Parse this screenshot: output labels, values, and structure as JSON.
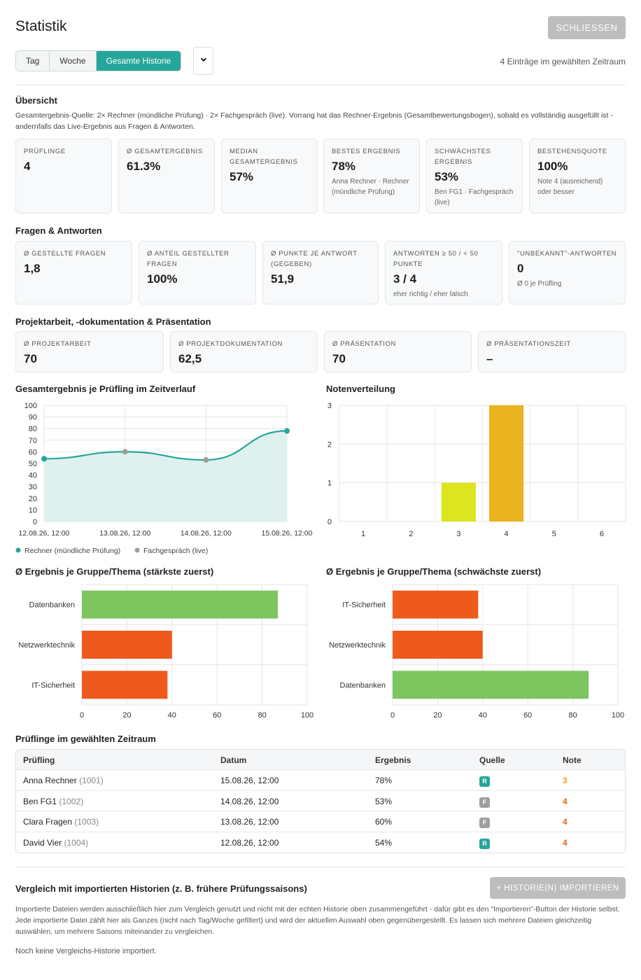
{
  "header": {
    "title": "Statistik",
    "close_label": "SCHLIESSEN"
  },
  "filter": {
    "tabs": [
      "Tag",
      "Woche",
      "Gesamte Historie"
    ],
    "active_tab": "Gesamte Historie",
    "select_icon": "chevron-down-icon",
    "count_text": "4 Einträge im gewählten Zeitraum"
  },
  "overview": {
    "title": "Übersicht",
    "description": "Gesamtergebnis-Quelle: 2× Rechner (mündliche Prüfung) · 2× Fachgespräch (live). Vorrang hat das Rechner-Ergebnis (Gesamtbewertungsbogen), sobald es vollständig ausgefüllt ist - andernfalls das Live-Ergebnis aus Fragen & Antworten.",
    "cards": [
      {
        "label": "Prüflinge",
        "value": "4",
        "sub": ""
      },
      {
        "label": "Ø Gesamtergebnis",
        "value": "61.3%",
        "sub": ""
      },
      {
        "label": "Median Gesamtergebnis",
        "value": "57%",
        "sub": ""
      },
      {
        "label": "Bestes Ergebnis",
        "value": "78%",
        "sub": "Anna Rechner · Rechner (mündliche Prüfung)"
      },
      {
        "label": "Schwächstes Ergebnis",
        "value": "53%",
        "sub": "Ben FG1 · Fachgespräch (live)"
      },
      {
        "label": "Bestehensquote",
        "value": "100%",
        "sub": "Note 4 (ausreichend) oder besser"
      }
    ]
  },
  "qa": {
    "title": "Fragen & Antworten",
    "cards": [
      {
        "label": "Ø Gestellte Fragen",
        "value": "1,8",
        "sub": ""
      },
      {
        "label": "Ø Anteil gestellter Fragen",
        "value": "100%",
        "sub": ""
      },
      {
        "label": "Ø Punkte je Antwort (gegeben)",
        "value": "51,9",
        "sub": ""
      },
      {
        "label": "Antworten ≥ 50 / < 50 Punkte",
        "value": "3 / 4",
        "sub": "eher richtig / eher falsch"
      },
      {
        "label": "\"Unbekannt\"-Antworten",
        "value": "0",
        "sub": "Ø 0 je Prüfling"
      }
    ]
  },
  "project": {
    "title": "Projektarbeit, -dokumentation & Präsentation",
    "cards": [
      {
        "label": "Ø Projektarbeit",
        "value": "70"
      },
      {
        "label": "Ø Projektdokumentation",
        "value": "62,5"
      },
      {
        "label": "Ø Präsentation",
        "value": "70"
      },
      {
        "label": "Ø Präsentationszeit",
        "value": "–"
      }
    ]
  },
  "chart_data": [
    {
      "type": "line",
      "title": "Gesamtergebnis je Prüfling im Zeitverlauf",
      "x": [
        "12.08.26, 12:00",
        "13.08.26, 12:00",
        "14.08.26, 12:00",
        "15.08.26, 12:00"
      ],
      "values": [
        54,
        60,
        53,
        78
      ],
      "point_sources": [
        "Rechner (mündliche Prüfung)",
        "Fachgespräch (live)",
        "Fachgespräch (live)",
        "Rechner (mündliche Prüfung)"
      ],
      "ylim": [
        0,
        100
      ],
      "yticks": [
        0,
        10,
        20,
        30,
        40,
        50,
        60,
        70,
        80,
        90,
        100
      ],
      "legend": [
        {
          "name": "Rechner (mündliche Prüfung)",
          "color": "#26a69a"
        },
        {
          "name": "Fachgespräch (live)",
          "color": "#9e9e9e"
        }
      ],
      "legend_position": "bottom-left",
      "line_color": "#26a69a",
      "fill_color": "#dff1ee",
      "grid": true
    },
    {
      "type": "bar",
      "title": "Notenverteilung",
      "categories": [
        "1",
        "2",
        "3",
        "4",
        "5",
        "6"
      ],
      "values": [
        0,
        0,
        1,
        3,
        0,
        0
      ],
      "colors": [
        "#26a69a",
        "#8bc34a",
        "#dce51f",
        "#eab21e",
        "#f57c00",
        "#e53935"
      ],
      "ylim": [
        0,
        3
      ],
      "yticks": [
        0,
        1,
        2,
        3
      ],
      "grid": true
    },
    {
      "type": "bar",
      "orientation": "horizontal",
      "title": "Ø Ergebnis je Gruppe/Thema (stärkste zuerst)",
      "categories": [
        "Datenbanken",
        "Netzwerktechnik",
        "IT-Sicherheit"
      ],
      "values": [
        87,
        40,
        38
      ],
      "colors": [
        "#7cc55f",
        "#ee5a1d",
        "#ee5a1d"
      ],
      "xlim": [
        0,
        100
      ],
      "xticks": [
        0,
        20,
        40,
        60,
        80,
        100
      ],
      "grid": true
    },
    {
      "type": "bar",
      "orientation": "horizontal",
      "title": "Ø Ergebnis je Gruppe/Thema (schwächste zuerst)",
      "categories": [
        "IT-Sicherheit",
        "Netzwerktechnik",
        "Datenbanken"
      ],
      "values": [
        38,
        40,
        87
      ],
      "colors": [
        "#ee5a1d",
        "#ee5a1d",
        "#7cc55f"
      ],
      "xlim": [
        0,
        100
      ],
      "xticks": [
        0,
        20,
        40,
        60,
        80,
        100
      ],
      "grid": true
    }
  ],
  "table": {
    "title": "Prüflinge im gewählten Zeitraum",
    "headers": [
      "Prüfling",
      "Datum",
      "Ergebnis",
      "Quelle",
      "Note"
    ],
    "rows": [
      {
        "name": "Anna Rechner",
        "id": "(1001)",
        "date": "15.08.26, 12:00",
        "result": "78%",
        "source": "R",
        "source_color": "#26a69a",
        "grade": "3",
        "grade_color": "#f39c12"
      },
      {
        "name": "Ben FG1",
        "id": "(1002)",
        "date": "14.08.26, 12:00",
        "result": "53%",
        "source": "F",
        "source_color": "#9e9e9e",
        "grade": "4",
        "grade_color": "#e8650a"
      },
      {
        "name": "Clara Fragen",
        "id": "(1003)",
        "date": "13.08.26, 12:00",
        "result": "60%",
        "source": "F",
        "source_color": "#9e9e9e",
        "grade": "4",
        "grade_color": "#e8650a"
      },
      {
        "name": "David Vier",
        "id": "(1004)",
        "date": "12.08.26, 12:00",
        "result": "54%",
        "source": "R",
        "source_color": "#26a69a",
        "grade": "4",
        "grade_color": "#e8650a"
      }
    ]
  },
  "comparison": {
    "title": "Vergleich mit importierten Historien (z. B. frühere Prüfungssaisons)",
    "button": "+ HISTORIE(N) IMPORTIEREN",
    "description": "Importierte Dateien werden ausschließlich hier zum Vergleich genutzt und nicht mit der echten Historie oben zusammengeführt - dafür gibt es den \"Importieren\"-Button der Historie selbst. Jede importierte Datei zählt hier als Ganzes (nicht nach Tag/Woche gefiltert) und wird der aktuellen Auswahl oben gegenübergestellt. Es lassen sich mehrere Dateien gleichzeitig auswählen, um mehrere Saisons miteinander zu vergleichen.",
    "empty": "Noch keine Vergleichs-Historie importiert."
  }
}
